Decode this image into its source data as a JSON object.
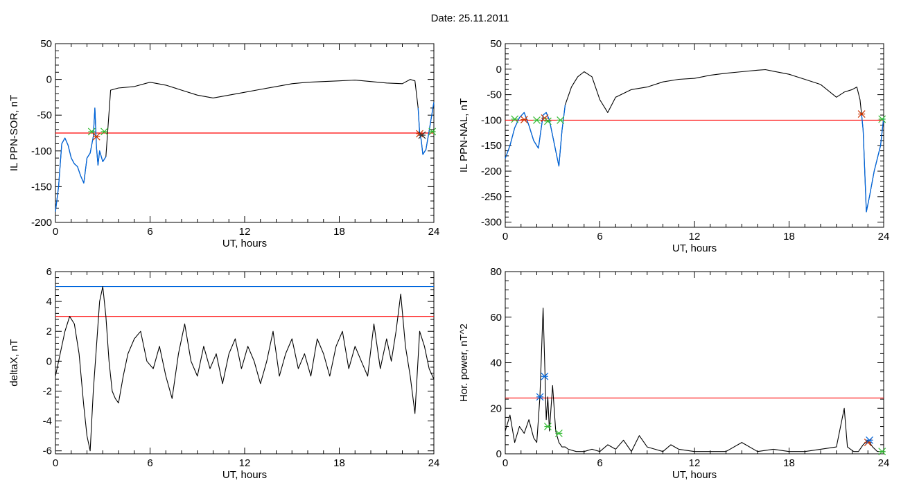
{
  "figure": {
    "title": "Date:  25.11.2011"
  },
  "chart_data": [
    {
      "type": "line",
      "xlabel": "UT, hours",
      "ylabel": "IL PPN-SOR, nT",
      "xlim": [
        0,
        24
      ],
      "ylim": [
        -200,
        50
      ],
      "xticks": [
        0,
        6,
        12,
        18,
        24
      ],
      "yticks": [
        -200,
        -150,
        -100,
        -50,
        0,
        50
      ],
      "threshold": {
        "value": -75,
        "color": "#ff0000"
      },
      "series": [
        {
          "color": "#000000",
          "x": [
            0,
            0.2,
            0.4,
            0.6,
            0.8,
            1.0,
            1.2,
            1.4,
            1.6,
            1.8,
            2.0,
            2.2,
            2.4,
            2.5,
            2.6,
            2.7,
            2.8,
            3.0,
            3.2,
            3.5,
            4,
            5,
            6,
            7,
            8,
            9,
            10,
            11,
            12,
            13,
            14,
            15,
            16,
            17,
            18,
            19,
            20,
            21,
            22,
            22.5,
            22.8,
            23.0,
            23.1,
            23.2,
            23.3,
            23.5,
            23.7,
            24
          ],
          "y": [
            -185,
            -150,
            -90,
            -82,
            -92,
            -110,
            -118,
            -122,
            -135,
            -145,
            -110,
            -103,
            -80,
            -40,
            -95,
            -120,
            -100,
            -115,
            -108,
            -15,
            -12,
            -10,
            -4,
            -8,
            -15,
            -22,
            -26,
            -22,
            -18,
            -14,
            -10,
            -6,
            -4,
            -3,
            -2,
            -1,
            -3,
            -5,
            -6,
            0,
            -2,
            -40,
            -75,
            -85,
            -105,
            -98,
            -72,
            -32
          ]
        }
      ],
      "highlight": {
        "color": "#0066dd",
        "ranges": [
          [
            0,
            3.3
          ],
          [
            23.0,
            24
          ]
        ]
      },
      "markers": [
        {
          "x": 2.3,
          "y": -73,
          "color": "#33bb33"
        },
        {
          "x": 2.6,
          "y": -80,
          "color": "#cc3300"
        },
        {
          "x": 3.1,
          "y": -73,
          "color": "#33bb33"
        },
        {
          "x": 23.1,
          "y": -76,
          "color": "#cc3300"
        },
        {
          "x": 23.25,
          "y": -78,
          "color": "#333333"
        },
        {
          "x": 23.9,
          "y": -73,
          "color": "#33bb33"
        }
      ]
    },
    {
      "type": "line",
      "xlabel": "UT, hours",
      "ylabel": "IL PPN-NAL, nT",
      "xlim": [
        0,
        24
      ],
      "ylim": [
        -310,
        50
      ],
      "xticks": [
        0,
        6,
        12,
        18,
        24
      ],
      "yticks": [
        -300,
        -250,
        -200,
        -150,
        -100,
        -50,
        0,
        50
      ],
      "threshold": {
        "value": -100,
        "color": "#ff0000"
      },
      "series": [
        {
          "color": "#000000",
          "x": [
            0,
            0.3,
            0.6,
            0.9,
            1.2,
            1.5,
            1.8,
            2.1,
            2.4,
            2.6,
            2.8,
            3.0,
            3.2,
            3.4,
            3.6,
            3.8,
            4.2,
            4.6,
            5.0,
            5.5,
            6.0,
            6.5,
            7,
            8,
            9,
            10,
            11,
            12,
            13,
            14,
            15,
            16,
            16.5,
            17,
            18,
            19,
            20,
            21,
            21.5,
            22,
            22.3,
            22.5,
            22.6,
            22.7,
            22.9,
            23.1,
            23.4,
            23.8,
            24
          ],
          "y": [
            -175,
            -150,
            -115,
            -95,
            -85,
            -110,
            -140,
            -155,
            -90,
            -85,
            -100,
            -130,
            -160,
            -190,
            -120,
            -70,
            -35,
            -15,
            -5,
            -15,
            -60,
            -85,
            -55,
            -40,
            -35,
            -25,
            -20,
            -18,
            -12,
            -8,
            -5,
            -2,
            -1,
            -4,
            -10,
            -20,
            -30,
            -55,
            -45,
            -40,
            -35,
            -60,
            -90,
            -120,
            -280,
            -250,
            -200,
            -150,
            -95
          ]
        }
      ],
      "highlight": {
        "color": "#0066dd",
        "ranges": [
          [
            0,
            3.8
          ],
          [
            22.6,
            24
          ]
        ]
      },
      "markers": [
        {
          "x": 0.6,
          "y": -98,
          "color": "#33bb33"
        },
        {
          "x": 1.2,
          "y": -99,
          "color": "#cc3300"
        },
        {
          "x": 2.0,
          "y": -100,
          "color": "#33bb33"
        },
        {
          "x": 2.5,
          "y": -96,
          "color": "#cc3300"
        },
        {
          "x": 2.7,
          "y": -102,
          "color": "#33bb33"
        },
        {
          "x": 3.5,
          "y": -100,
          "color": "#33bb33"
        },
        {
          "x": 22.6,
          "y": -88,
          "color": "#cc3300"
        },
        {
          "x": 23.9,
          "y": -98,
          "color": "#33bb33"
        }
      ]
    },
    {
      "type": "line",
      "xlabel": "UT, hours",
      "ylabel": "deltaX, nT",
      "xlim": [
        0,
        24
      ],
      "ylim": [
        -6.2,
        6
      ],
      "xticks": [
        0,
        6,
        12,
        18,
        24
      ],
      "yticks": [
        -6,
        -4,
        -2,
        0,
        2,
        4,
        6
      ],
      "thresholds": [
        {
          "value": 5,
          "color": "#0066dd"
        },
        {
          "value": 3,
          "color": "#ff0000"
        }
      ],
      "series": [
        {
          "color": "#000000",
          "x": [
            0,
            0.3,
            0.6,
            0.9,
            1.2,
            1.5,
            1.8,
            2.0,
            2.2,
            2.4,
            2.6,
            2.8,
            3.0,
            3.2,
            3.4,
            3.6,
            3.8,
            4.0,
            4.3,
            4.6,
            5.0,
            5.4,
            5.8,
            6.2,
            6.6,
            7.0,
            7.4,
            7.8,
            8.2,
            8.6,
            9.0,
            9.4,
            9.8,
            10.2,
            10.6,
            11.0,
            11.4,
            11.8,
            12.2,
            12.6,
            13.0,
            13.4,
            13.8,
            14.2,
            14.6,
            15.0,
            15.4,
            15.8,
            16.2,
            16.6,
            17.0,
            17.4,
            17.8,
            18.2,
            18.6,
            19.0,
            19.4,
            19.8,
            20.2,
            20.6,
            21.0,
            21.3,
            21.6,
            21.9,
            22.2,
            22.5,
            22.8,
            23.1,
            23.4,
            23.7,
            24
          ],
          "y": [
            -1,
            0.5,
            2,
            3,
            2.5,
            0.5,
            -3,
            -5,
            -6,
            -2,
            1,
            4,
            5,
            3,
            0,
            -2,
            -2.5,
            -2.8,
            -1,
            0.5,
            1.5,
            2,
            0,
            -0.5,
            1,
            -1,
            -2.5,
            0.5,
            2.5,
            0,
            -1,
            1,
            -0.5,
            0.5,
            -1.5,
            0.5,
            1.5,
            -0.5,
            1,
            0,
            -1.5,
            0,
            2,
            -1,
            0.5,
            1.5,
            -0.5,
            0.5,
            -1,
            1.5,
            0.5,
            -1,
            1,
            2,
            -0.5,
            1,
            0,
            -1,
            2.5,
            -0.5,
            1.5,
            0,
            2,
            4.5,
            1,
            -1,
            -3.5,
            2,
            1,
            -0.5,
            -1.2
          ]
        }
      ]
    },
    {
      "type": "line",
      "xlabel": "UT, hours",
      "ylabel": "Hor. power, nT^2",
      "xlim": [
        0,
        24
      ],
      "ylim": [
        0,
        80
      ],
      "xticks": [
        0,
        6,
        12,
        18,
        24
      ],
      "yticks": [
        0,
        20,
        40,
        60,
        80
      ],
      "threshold": {
        "value": 24.5,
        "color": "#ff0000"
      },
      "series": [
        {
          "color": "#000000",
          "x": [
            0,
            0.3,
            0.6,
            0.9,
            1.2,
            1.5,
            1.8,
            2.0,
            2.2,
            2.4,
            2.5,
            2.6,
            2.7,
            2.8,
            3.0,
            3.2,
            3.4,
            3.6,
            3.8,
            4.0,
            4.5,
            5.0,
            5.5,
            6.0,
            6.5,
            7.0,
            7.5,
            8.0,
            8.5,
            9.0,
            9.5,
            10.0,
            10.5,
            11,
            12,
            13,
            14,
            15,
            16,
            17,
            18,
            19,
            20,
            21,
            21.5,
            21.7,
            21.9,
            22.1,
            22.4,
            22.7,
            23.0,
            23.3,
            23.6,
            24
          ],
          "y": [
            10,
            17,
            5,
            12,
            9,
            15,
            7,
            5,
            25,
            64,
            40,
            15,
            25,
            10,
            30,
            10,
            5,
            3,
            3,
            2,
            1,
            1,
            2,
            1,
            4,
            2,
            6,
            1,
            8,
            3,
            2,
            1,
            4,
            2,
            1,
            1,
            1,
            5,
            1,
            2,
            1,
            1,
            2,
            3,
            20,
            3,
            2,
            1,
            1,
            4,
            6,
            3,
            1,
            1
          ]
        }
      ],
      "markers": [
        {
          "x": 2.2,
          "y": 25,
          "color": "#0066dd"
        },
        {
          "x": 2.5,
          "y": 34,
          "color": "#0066dd"
        },
        {
          "x": 2.7,
          "y": 12,
          "color": "#33bb33"
        },
        {
          "x": 3.4,
          "y": 9,
          "color": "#33bb33"
        },
        {
          "x": 23.0,
          "y": 5,
          "color": "#cc3300"
        },
        {
          "x": 23.1,
          "y": 6,
          "color": "#0066dd"
        },
        {
          "x": 23.9,
          "y": 1,
          "color": "#33bb33"
        }
      ]
    }
  ]
}
